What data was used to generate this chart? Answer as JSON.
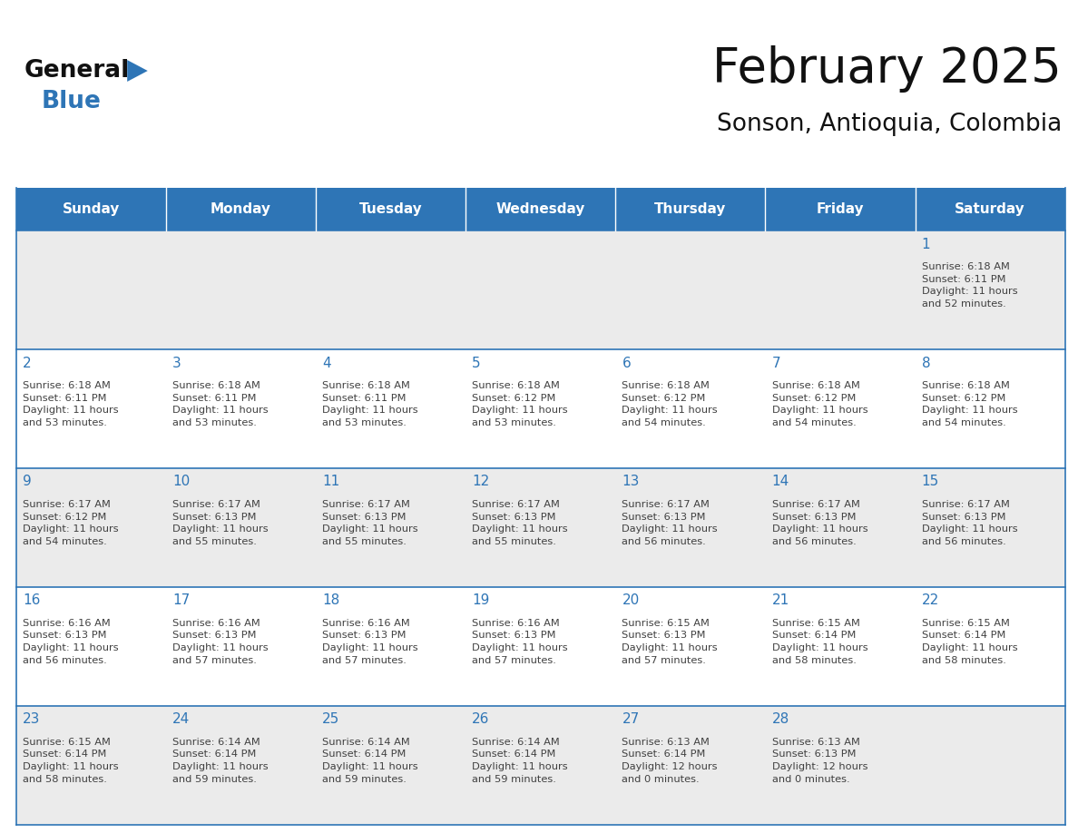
{
  "title": "February 2025",
  "subtitle": "Sonson, Antioquia, Colombia",
  "header_bg": "#2E75B6",
  "header_text_color": "#FFFFFF",
  "cell_bg_odd": "#EBEBEB",
  "cell_bg_even": "#FFFFFF",
  "day_number_color": "#2E75B6",
  "text_color": "#404040",
  "line_color": "#2E75B6",
  "days_of_week": [
    "Sunday",
    "Monday",
    "Tuesday",
    "Wednesday",
    "Thursday",
    "Friday",
    "Saturday"
  ],
  "calendar": [
    [
      {
        "day": "",
        "info": ""
      },
      {
        "day": "",
        "info": ""
      },
      {
        "day": "",
        "info": ""
      },
      {
        "day": "",
        "info": ""
      },
      {
        "day": "",
        "info": ""
      },
      {
        "day": "",
        "info": ""
      },
      {
        "day": "1",
        "info": "Sunrise: 6:18 AM\nSunset: 6:11 PM\nDaylight: 11 hours\nand 52 minutes."
      }
    ],
    [
      {
        "day": "2",
        "info": "Sunrise: 6:18 AM\nSunset: 6:11 PM\nDaylight: 11 hours\nand 53 minutes."
      },
      {
        "day": "3",
        "info": "Sunrise: 6:18 AM\nSunset: 6:11 PM\nDaylight: 11 hours\nand 53 minutes."
      },
      {
        "day": "4",
        "info": "Sunrise: 6:18 AM\nSunset: 6:11 PM\nDaylight: 11 hours\nand 53 minutes."
      },
      {
        "day": "5",
        "info": "Sunrise: 6:18 AM\nSunset: 6:12 PM\nDaylight: 11 hours\nand 53 minutes."
      },
      {
        "day": "6",
        "info": "Sunrise: 6:18 AM\nSunset: 6:12 PM\nDaylight: 11 hours\nand 54 minutes."
      },
      {
        "day": "7",
        "info": "Sunrise: 6:18 AM\nSunset: 6:12 PM\nDaylight: 11 hours\nand 54 minutes."
      },
      {
        "day": "8",
        "info": "Sunrise: 6:18 AM\nSunset: 6:12 PM\nDaylight: 11 hours\nand 54 minutes."
      }
    ],
    [
      {
        "day": "9",
        "info": "Sunrise: 6:17 AM\nSunset: 6:12 PM\nDaylight: 11 hours\nand 54 minutes."
      },
      {
        "day": "10",
        "info": "Sunrise: 6:17 AM\nSunset: 6:13 PM\nDaylight: 11 hours\nand 55 minutes."
      },
      {
        "day": "11",
        "info": "Sunrise: 6:17 AM\nSunset: 6:13 PM\nDaylight: 11 hours\nand 55 minutes."
      },
      {
        "day": "12",
        "info": "Sunrise: 6:17 AM\nSunset: 6:13 PM\nDaylight: 11 hours\nand 55 minutes."
      },
      {
        "day": "13",
        "info": "Sunrise: 6:17 AM\nSunset: 6:13 PM\nDaylight: 11 hours\nand 56 minutes."
      },
      {
        "day": "14",
        "info": "Sunrise: 6:17 AM\nSunset: 6:13 PM\nDaylight: 11 hours\nand 56 minutes."
      },
      {
        "day": "15",
        "info": "Sunrise: 6:17 AM\nSunset: 6:13 PM\nDaylight: 11 hours\nand 56 minutes."
      }
    ],
    [
      {
        "day": "16",
        "info": "Sunrise: 6:16 AM\nSunset: 6:13 PM\nDaylight: 11 hours\nand 56 minutes."
      },
      {
        "day": "17",
        "info": "Sunrise: 6:16 AM\nSunset: 6:13 PM\nDaylight: 11 hours\nand 57 minutes."
      },
      {
        "day": "18",
        "info": "Sunrise: 6:16 AM\nSunset: 6:13 PM\nDaylight: 11 hours\nand 57 minutes."
      },
      {
        "day": "19",
        "info": "Sunrise: 6:16 AM\nSunset: 6:13 PM\nDaylight: 11 hours\nand 57 minutes."
      },
      {
        "day": "20",
        "info": "Sunrise: 6:15 AM\nSunset: 6:13 PM\nDaylight: 11 hours\nand 57 minutes."
      },
      {
        "day": "21",
        "info": "Sunrise: 6:15 AM\nSunset: 6:14 PM\nDaylight: 11 hours\nand 58 minutes."
      },
      {
        "day": "22",
        "info": "Sunrise: 6:15 AM\nSunset: 6:14 PM\nDaylight: 11 hours\nand 58 minutes."
      }
    ],
    [
      {
        "day": "23",
        "info": "Sunrise: 6:15 AM\nSunset: 6:14 PM\nDaylight: 11 hours\nand 58 minutes."
      },
      {
        "day": "24",
        "info": "Sunrise: 6:14 AM\nSunset: 6:14 PM\nDaylight: 11 hours\nand 59 minutes."
      },
      {
        "day": "25",
        "info": "Sunrise: 6:14 AM\nSunset: 6:14 PM\nDaylight: 11 hours\nand 59 minutes."
      },
      {
        "day": "26",
        "info": "Sunrise: 6:14 AM\nSunset: 6:14 PM\nDaylight: 11 hours\nand 59 minutes."
      },
      {
        "day": "27",
        "info": "Sunrise: 6:13 AM\nSunset: 6:14 PM\nDaylight: 12 hours\nand 0 minutes."
      },
      {
        "day": "28",
        "info": "Sunrise: 6:13 AM\nSunset: 6:13 PM\nDaylight: 12 hours\nand 0 minutes."
      },
      {
        "day": "",
        "info": ""
      }
    ]
  ],
  "logo_general_color": "#111111",
  "logo_blue_color": "#2E75B6",
  "logo_triangle_color": "#2E75B6",
  "fig_width": 11.88,
  "fig_height": 9.18,
  "dpi": 100
}
